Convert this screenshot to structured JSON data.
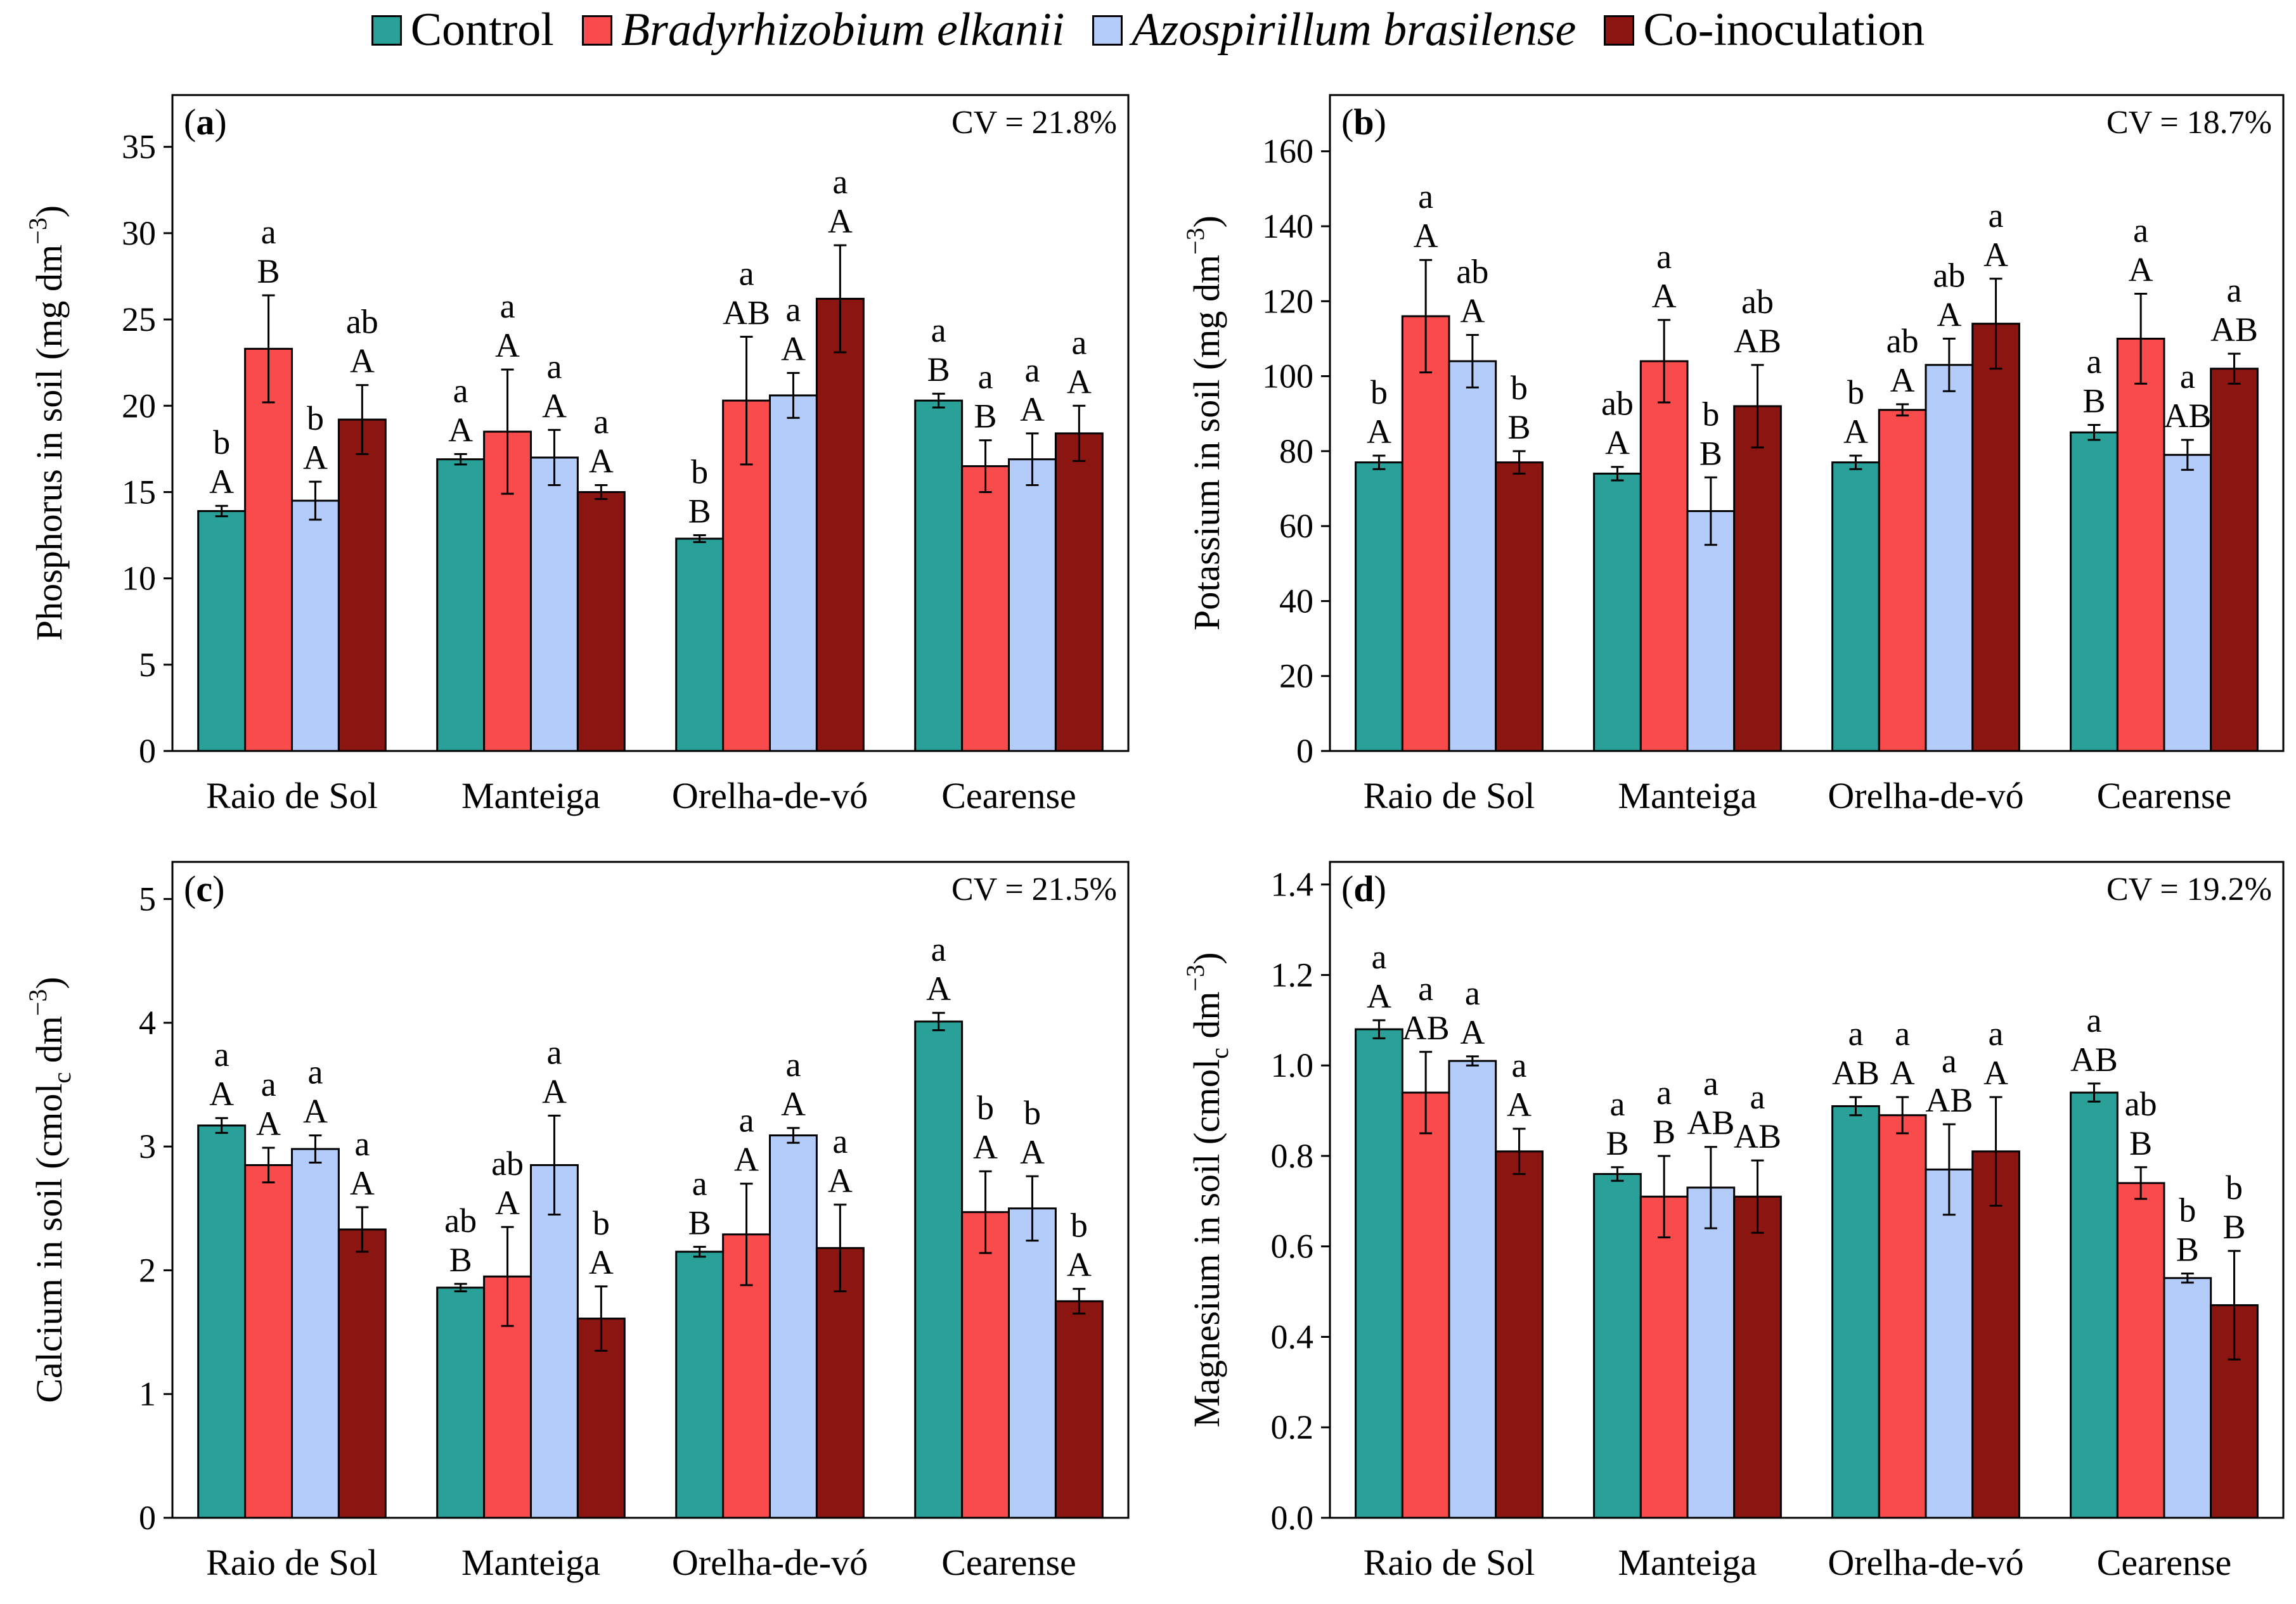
{
  "legend": [
    {
      "label": "Control",
      "color": "#2aa198",
      "italic": false
    },
    {
      "label": "Bradyrhizobium elkanii",
      "color": "#f94b4b",
      "italic": true
    },
    {
      "label": "Azospirillum brasilense",
      "color": "#b4ccf9",
      "italic": true
    },
    {
      "label": "Co-inoculation",
      "color": "#8b1510",
      "italic": false
    }
  ],
  "chart_data": [
    {
      "type": "bar",
      "panel_label": "a",
      "cv": "CV = 21.8%",
      "ylabel_main": "Phosphorus in soil (mg dm",
      "ylabel_sup": "−3",
      "ylabel_sub": "",
      "ylabel_after": ")",
      "categories": [
        "Raio de Sol",
        "Manteiga",
        "Orelha-de-vó",
        "Cearense"
      ],
      "ylim": [
        0,
        38
      ],
      "yticks": [
        "0",
        "5",
        "10",
        "15",
        "20",
        "25",
        "30",
        "35"
      ],
      "ytick_values": [
        0,
        5,
        10,
        15,
        20,
        25,
        30,
        35
      ],
      "series": [
        {
          "name": "Control",
          "values": [
            13.9,
            16.9,
            12.3,
            20.3
          ],
          "errors": [
            0.3,
            0.3,
            0.2,
            0.4
          ],
          "lower": [
            "b",
            "a",
            "b",
            "a"
          ],
          "upper": [
            "A",
            "A",
            "B",
            "B"
          ]
        },
        {
          "name": "Bradyrhizobium elkanii",
          "values": [
            23.3,
            18.5,
            20.3,
            16.5
          ],
          "errors": [
            3.1,
            3.6,
            3.7,
            1.5
          ],
          "lower": [
            "a",
            "a",
            "a",
            "a"
          ],
          "upper": [
            "B",
            "A",
            "AB",
            "B"
          ]
        },
        {
          "name": "Azospirillum brasilense",
          "values": [
            14.5,
            17.0,
            20.6,
            16.9
          ],
          "errors": [
            1.1,
            1.6,
            1.3,
            1.5
          ],
          "lower": [
            "b",
            "a",
            "a",
            "a"
          ],
          "upper": [
            "A",
            "A",
            "A",
            "A"
          ]
        },
        {
          "name": "Co-inoculation",
          "values": [
            19.2,
            15.0,
            26.2,
            18.4
          ],
          "errors": [
            2.0,
            0.4,
            3.1,
            1.6
          ],
          "lower": [
            "ab",
            "a",
            "a",
            "a"
          ],
          "upper": [
            "A",
            "A",
            "A",
            "A"
          ]
        }
      ]
    },
    {
      "type": "bar",
      "panel_label": "b",
      "cv": "CV = 18.7%",
      "ylabel_main": "Potassium in soil (mg dm",
      "ylabel_sup": "−3",
      "ylabel_sub": "",
      "ylabel_after": ")",
      "categories": [
        "Raio de Sol",
        "Manteiga",
        "Orelha-de-vó",
        "Cearense"
      ],
      "ylim": [
        0,
        175
      ],
      "yticks": [
        "0",
        "20",
        "40",
        "60",
        "80",
        "100",
        "120",
        "140",
        "160"
      ],
      "ytick_values": [
        0,
        20,
        40,
        60,
        80,
        100,
        120,
        140,
        160
      ],
      "series": [
        {
          "name": "Control",
          "values": [
            77,
            74,
            77,
            85
          ],
          "errors": [
            1.8,
            1.8,
            1.8,
            2.0
          ],
          "lower": [
            "b",
            "ab",
            "b",
            "a"
          ],
          "upper": [
            "A",
            "A",
            "A",
            "B"
          ]
        },
        {
          "name": "Bradyrhizobium elkanii",
          "values": [
            116,
            104,
            91,
            110
          ],
          "errors": [
            15,
            11,
            1.5,
            12
          ],
          "lower": [
            "a",
            "a",
            "ab",
            "a"
          ],
          "upper": [
            "A",
            "A",
            "A",
            "A"
          ]
        },
        {
          "name": "Azospirillum brasilense",
          "values": [
            104,
            64,
            103,
            79
          ],
          "errors": [
            7,
            9,
            7,
            4
          ],
          "lower": [
            "ab",
            "b",
            "ab",
            "a"
          ],
          "upper": [
            "A",
            "B",
            "A",
            "AB"
          ]
        },
        {
          "name": "Co-inoculation",
          "values": [
            77,
            92,
            114,
            102
          ],
          "errors": [
            3,
            11,
            12,
            4
          ],
          "lower": [
            "b",
            "ab",
            "a",
            "a"
          ],
          "upper": [
            "B",
            "AB",
            "A",
            "AB"
          ]
        }
      ]
    },
    {
      "type": "bar",
      "panel_label": "c",
      "cv": "CV = 21.5%",
      "ylabel_main": "Calcium in soil (cmol",
      "ylabel_sup": "",
      "ylabel_sub": "c",
      "ylabel_after": " dm",
      "ylabel_sup2": "−3",
      "ylabel_end": ")",
      "categories": [
        "Raio de Sol",
        "Manteiga",
        "Orelha-de-vó",
        "Cearense"
      ],
      "ylim": [
        0,
        5.3
      ],
      "yticks": [
        "0",
        "1",
        "2",
        "3",
        "4",
        "5"
      ],
      "ytick_values": [
        0,
        1,
        2,
        3,
        4,
        5
      ],
      "series": [
        {
          "name": "Control",
          "values": [
            3.17,
            1.86,
            2.15,
            4.01
          ],
          "errors": [
            0.06,
            0.03,
            0.04,
            0.07
          ],
          "lower": [
            "a",
            "ab",
            "a",
            "a"
          ],
          "upper": [
            "A",
            "B",
            "B",
            "A"
          ]
        },
        {
          "name": "Bradyrhizobium elkanii",
          "values": [
            2.85,
            1.95,
            2.29,
            2.47
          ],
          "errors": [
            0.14,
            0.4,
            0.41,
            0.33
          ],
          "lower": [
            "a",
            "ab",
            "a",
            "b"
          ],
          "upper": [
            "A",
            "A",
            "A",
            "A"
          ]
        },
        {
          "name": "Azospirillum brasilense",
          "values": [
            2.98,
            2.85,
            3.09,
            2.5
          ],
          "errors": [
            0.11,
            0.4,
            0.06,
            0.26
          ],
          "lower": [
            "a",
            "a",
            "a",
            "b"
          ],
          "upper": [
            "A",
            "A",
            "A",
            "A"
          ]
        },
        {
          "name": "Co-inoculation",
          "values": [
            2.33,
            1.61,
            2.18,
            1.75
          ],
          "errors": [
            0.18,
            0.26,
            0.35,
            0.1
          ],
          "lower": [
            "a",
            "b",
            "a",
            "b"
          ],
          "upper": [
            "A",
            "A",
            "A",
            "A"
          ]
        }
      ]
    },
    {
      "type": "bar",
      "panel_label": "d",
      "cv": "CV = 19.2%",
      "ylabel_main": "Magnesium in soil (cmol",
      "ylabel_sup": "",
      "ylabel_sub": "c",
      "ylabel_after": " dm",
      "ylabel_sup2": "−3",
      "ylabel_end": ")",
      "categories": [
        "Raio de Sol",
        "Manteiga",
        "Orelha-de-vó",
        "Cearense"
      ],
      "ylim": [
        0,
        1.45
      ],
      "yticks": [
        "0.0",
        "0.2",
        "0.4",
        "0.6",
        "0.8",
        "1.0",
        "1.2",
        "1.4"
      ],
      "ytick_values": [
        0,
        0.2,
        0.4,
        0.6,
        0.8,
        1.0,
        1.2,
        1.4
      ],
      "series": [
        {
          "name": "Control",
          "values": [
            1.08,
            0.76,
            0.91,
            0.94
          ],
          "errors": [
            0.02,
            0.015,
            0.02,
            0.02
          ],
          "lower": [
            "a",
            "a",
            "a",
            "a"
          ],
          "upper": [
            "A",
            "B",
            "AB",
            "AB"
          ]
        },
        {
          "name": "Bradyrhizobium elkanii",
          "values": [
            0.94,
            0.71,
            0.89,
            0.74
          ],
          "errors": [
            0.09,
            0.09,
            0.04,
            0.035
          ],
          "lower": [
            "a",
            "a",
            "a",
            "ab"
          ],
          "upper": [
            "AB",
            "B",
            "A",
            "B"
          ]
        },
        {
          "name": "Azospirillum brasilense",
          "values": [
            1.01,
            0.73,
            0.77,
            0.53
          ],
          "errors": [
            0.01,
            0.09,
            0.1,
            0.01
          ],
          "lower": [
            "a",
            "a",
            "a",
            "b"
          ],
          "upper": [
            "A",
            "AB",
            "AB",
            "B"
          ]
        },
        {
          "name": "Co-inoculation",
          "values": [
            0.81,
            0.71,
            0.81,
            0.47
          ],
          "errors": [
            0.05,
            0.08,
            0.12,
            0.12
          ],
          "lower": [
            "a",
            "a",
            "a",
            "b"
          ],
          "upper": [
            "A",
            "AB",
            "A",
            "B"
          ]
        }
      ]
    }
  ]
}
